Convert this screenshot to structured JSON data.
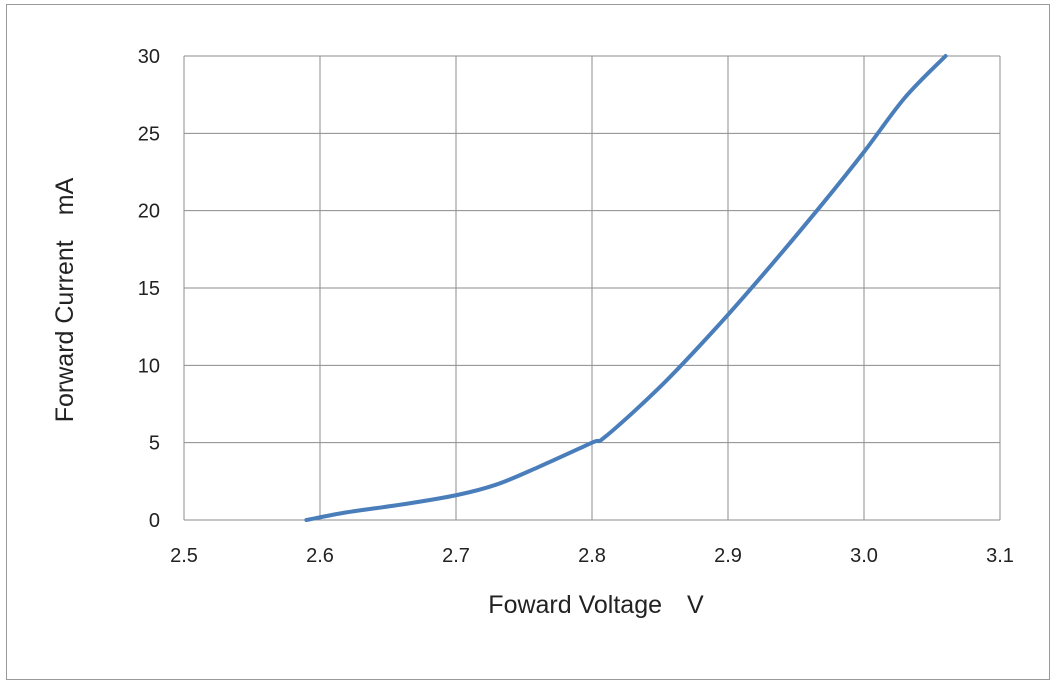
{
  "chart_data": {
    "type": "line",
    "title": "",
    "xlabel": "Foward Voltage　V",
    "ylabel": "Forward Current　mA",
    "xlim": [
      2.5,
      3.1
    ],
    "ylim": [
      0,
      30
    ],
    "x_ticks": [
      2.5,
      2.6,
      2.7,
      2.8,
      2.9,
      3.0,
      3.1
    ],
    "x_tick_labels": [
      "2.5",
      "2.6",
      "2.7",
      "2.8",
      "2.9",
      "3.0",
      "3.1"
    ],
    "y_ticks": [
      0,
      5,
      10,
      15,
      20,
      25,
      30
    ],
    "y_tick_labels": [
      "0",
      "5",
      "10",
      "15",
      "20",
      "25",
      "30"
    ],
    "grid": true,
    "legend": "none",
    "series": [
      {
        "color": "#4a7ebb",
        "x": [
          2.59,
          2.62,
          2.66,
          2.7,
          2.73,
          2.76,
          2.8,
          2.81,
          2.85,
          2.89,
          2.93,
          2.97,
          3.0,
          3.03,
          3.06
        ],
        "y": [
          0,
          0.5,
          1.0,
          1.6,
          2.3,
          3.4,
          5.0,
          5.4,
          8.6,
          12.3,
          16.3,
          20.5,
          23.8,
          27.3,
          30.0
        ]
      }
    ]
  }
}
